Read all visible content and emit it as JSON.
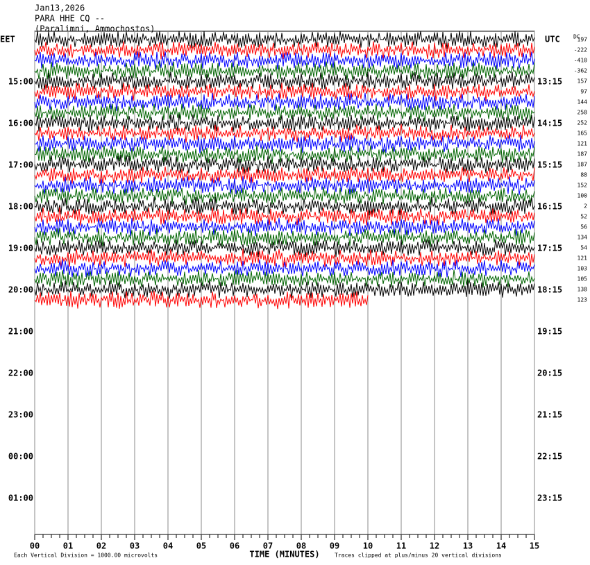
{
  "header": {
    "date": "Jan13,2026",
    "station": "PARA HHE CQ --",
    "location": "(Paralimni, Ammochostos)"
  },
  "left_zone": "EET",
  "right_zone": "UTC",
  "dc_header": "DC",
  "left_labels": [
    "15:00",
    "16:00",
    "17:00",
    "18:00",
    "19:00",
    "20:00",
    "21:00",
    "22:00",
    "23:00",
    "00:00",
    "01:00"
  ],
  "right_labels": [
    "13:15",
    "14:15",
    "15:15",
    "16:15",
    "17:15",
    "18:15",
    "19:15",
    "20:15",
    "21:15",
    "22:15",
    "23:15"
  ],
  "dc_values": [
    "197",
    "-222",
    "-410",
    "-362",
    "157",
    "97",
    "144",
    "258",
    "252",
    "165",
    "121",
    "187",
    "187",
    "88",
    "152",
    "100",
    "2",
    "52",
    "56",
    "134",
    "54",
    "121",
    "103",
    "105",
    "138",
    "123"
  ],
  "trace_colors": [
    "#000000",
    "#ff0000",
    "#0000ff",
    "#006400"
  ],
  "x_labels": [
    "00",
    "01",
    "02",
    "03",
    "04",
    "05",
    "06",
    "07",
    "08",
    "09",
    "10",
    "11",
    "12",
    "13",
    "14",
    "15"
  ],
  "x_title": "TIME (MINUTES)",
  "footer_left": "Each Vertical Division = 1000.00 microvolts",
  "footer_right": "Traces clipped at plus/minus 20 vertical divisions"
}
